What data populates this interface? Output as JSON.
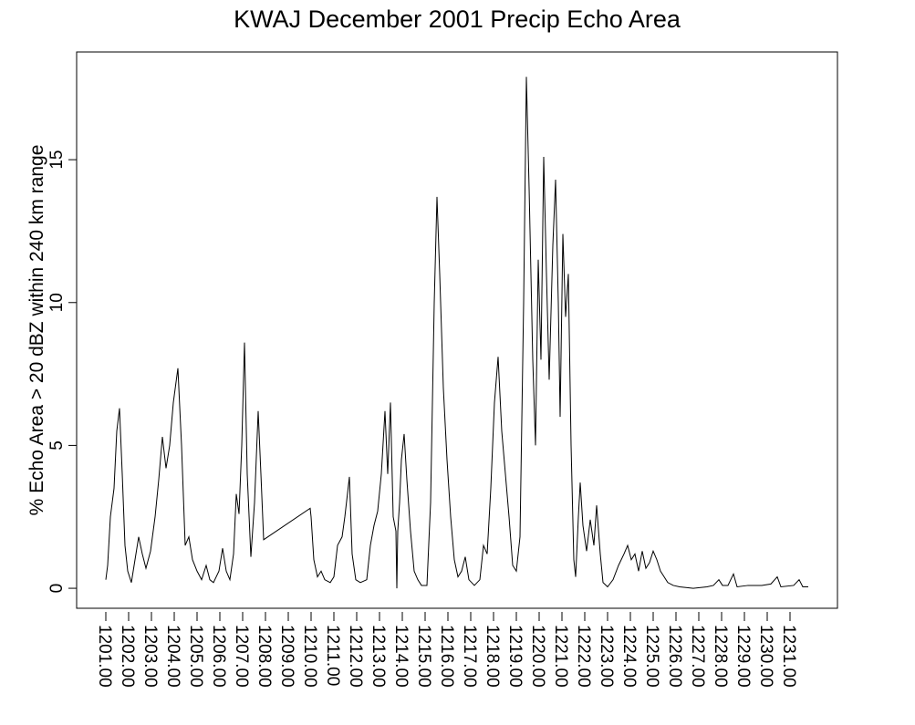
{
  "chart_data": {
    "type": "line",
    "title": "KWAJ December 2001 Precip Echo Area",
    "y_label": "% Echo Area > 20 dBZ within 240 km range",
    "color": "#000000",
    "xlim": [
      1199.72,
      1233.08
    ],
    "ylim": [
      -0.7,
      18.77
    ],
    "yticks": [
      0,
      5,
      10,
      15
    ],
    "xticks": [
      {
        "value": 1201,
        "label": "1201.00"
      },
      {
        "value": 1202,
        "label": "1202.00"
      },
      {
        "value": 1203,
        "label": "1203.00"
      },
      {
        "value": 1204,
        "label": "1204.00"
      },
      {
        "value": 1205,
        "label": "1205.00"
      },
      {
        "value": 1206,
        "label": "1206.00"
      },
      {
        "value": 1207,
        "label": "1207.00"
      },
      {
        "value": 1208,
        "label": "1208.00"
      },
      {
        "value": 1209,
        "label": "1209.00"
      },
      {
        "value": 1210,
        "label": "1210.00"
      },
      {
        "value": 1211,
        "label": "1211.00"
      },
      {
        "value": 1212,
        "label": "1212.00"
      },
      {
        "value": 1213,
        "label": "1213.00"
      },
      {
        "value": 1214,
        "label": "1214.00"
      },
      {
        "value": 1215,
        "label": "1215.00"
      },
      {
        "value": 1216,
        "label": "1216.00"
      },
      {
        "value": 1217,
        "label": "1217.00"
      },
      {
        "value": 1218,
        "label": "1218.00"
      },
      {
        "value": 1219,
        "label": "1219.00"
      },
      {
        "value": 1220,
        "label": "1220.00"
      },
      {
        "value": 1221,
        "label": "1221.00"
      },
      {
        "value": 1222,
        "label": "1222.00"
      },
      {
        "value": 1223,
        "label": "1223.00"
      },
      {
        "value": 1224,
        "label": "1224.00"
      },
      {
        "value": 1225,
        "label": "1225.00"
      },
      {
        "value": 1226,
        "label": "1226.00"
      },
      {
        "value": 1227,
        "label": "1227.00"
      },
      {
        "value": 1228,
        "label": "1228.00"
      },
      {
        "value": 1229,
        "label": "1229.00"
      },
      {
        "value": 1230,
        "label": "1230.00"
      },
      {
        "value": 1231,
        "label": "1231.00"
      }
    ],
    "x": [
      1201.0,
      1201.08,
      1201.2,
      1201.36,
      1201.48,
      1201.6,
      1201.72,
      1201.84,
      1201.96,
      1202.12,
      1202.28,
      1202.44,
      1202.6,
      1202.76,
      1202.96,
      1203.16,
      1203.32,
      1203.48,
      1203.64,
      1203.8,
      1203.96,
      1204.16,
      1204.32,
      1204.48,
      1204.64,
      1204.8,
      1205.0,
      1205.2,
      1205.4,
      1205.56,
      1205.72,
      1205.96,
      1206.12,
      1206.28,
      1206.44,
      1206.6,
      1206.72,
      1206.84,
      1206.96,
      1207.08,
      1207.2,
      1207.36,
      1207.52,
      1207.68,
      1207.8,
      1207.92,
      1209.96,
      1210.0,
      1210.12,
      1210.28,
      1210.44,
      1210.6,
      1210.84,
      1211.0,
      1211.16,
      1211.36,
      1211.48,
      1211.68,
      1211.8,
      1211.96,
      1212.16,
      1212.44,
      1212.6,
      1212.76,
      1212.92,
      1213.08,
      1213.24,
      1213.36,
      1213.48,
      1213.6,
      1213.72,
      1213.76,
      1213.8,
      1213.88,
      1213.96,
      1214.08,
      1214.2,
      1214.36,
      1214.52,
      1214.68,
      1214.84,
      1215.08,
      1215.24,
      1215.4,
      1215.52,
      1215.64,
      1215.8,
      1215.96,
      1216.12,
      1216.28,
      1216.44,
      1216.6,
      1216.76,
      1216.92,
      1217.16,
      1217.4,
      1217.56,
      1217.72,
      1217.88,
      1218.04,
      1218.2,
      1218.36,
      1218.52,
      1218.68,
      1218.84,
      1219.0,
      1219.16,
      1219.32,
      1219.44,
      1219.56,
      1219.72,
      1219.84,
      1219.96,
      1220.08,
      1220.2,
      1220.32,
      1220.44,
      1220.6,
      1220.72,
      1220.84,
      1220.92,
      1221.04,
      1221.16,
      1221.28,
      1221.4,
      1221.52,
      1221.6,
      1221.72,
      1221.8,
      1221.92,
      1222.08,
      1222.24,
      1222.4,
      1222.52,
      1222.68,
      1222.8,
      1223.0,
      1223.24,
      1223.48,
      1223.72,
      1223.88,
      1224.04,
      1224.2,
      1224.36,
      1224.52,
      1224.68,
      1224.84,
      1225.0,
      1225.16,
      1225.32,
      1225.48,
      1225.64,
      1225.88,
      1226.16,
      1226.76,
      1227.36,
      1227.64,
      1227.88,
      1228.04,
      1228.28,
      1228.52,
      1228.68,
      1229.16,
      1229.76,
      1230.16,
      1230.44,
      1230.6,
      1231.16,
      1231.4,
      1231.56,
      1231.8
    ],
    "values": [
      0.3,
      0.8,
      2.5,
      3.5,
      5.5,
      6.3,
      4,
      1.5,
      0.6,
      0.2,
      1.0,
      1.8,
      1.2,
      0.7,
      1.3,
      2.5,
      3.8,
      5.3,
      4.2,
      5.0,
      6.5,
      7.7,
      5,
      1.5,
      1.8,
      1.0,
      0.6,
      0.3,
      0.8,
      0.3,
      0.2,
      0.6,
      1.4,
      0.6,
      0.3,
      1.2,
      3.3,
      2.6,
      5,
      8.6,
      4,
      1.1,
      3,
      6.2,
      4,
      1.7,
      2.8,
      2.5,
      1.0,
      0.4,
      0.6,
      0.3,
      0.2,
      0.4,
      1.5,
      1.8,
      2.5,
      3.9,
      1.2,
      0.3,
      0.2,
      0.3,
      1.5,
      2.2,
      2.7,
      4,
      6.2,
      4,
      6.5,
      2.5,
      2,
      0,
      2,
      3,
      4.5,
      5.4,
      3.8,
      2,
      0.6,
      0.3,
      0.1,
      0.1,
      3,
      10,
      13.7,
      11,
      7,
      4.5,
      2.5,
      1,
      0.4,
      0.6,
      1.1,
      0.3,
      0.1,
      0.3,
      1.5,
      1.2,
      3.5,
      6.5,
      8.1,
      5.5,
      4,
      2.5,
      0.8,
      0.6,
      1.8,
      10,
      17.9,
      14,
      8,
      5,
      11.5,
      8,
      15.1,
      11,
      7.3,
      12,
      14.3,
      10,
      6,
      12.4,
      9.5,
      11,
      5,
      1,
      0.4,
      2.5,
      3.7,
      2.2,
      1.3,
      2.4,
      1.5,
      2.9,
      1.2,
      0.2,
      0.05,
      0.3,
      0.8,
      1.2,
      1.5,
      1.0,
      1.2,
      0.6,
      1.3,
      0.7,
      0.9,
      1.3,
      1.0,
      0.6,
      0.4,
      0.2,
      0.1,
      0.05,
      0,
      0.05,
      0.1,
      0.3,
      0.1,
      0.1,
      0.5,
      0.05,
      0.1,
      0.1,
      0.15,
      0.4,
      0.05,
      0.1,
      0.3,
      0.05,
      0.05
    ]
  }
}
